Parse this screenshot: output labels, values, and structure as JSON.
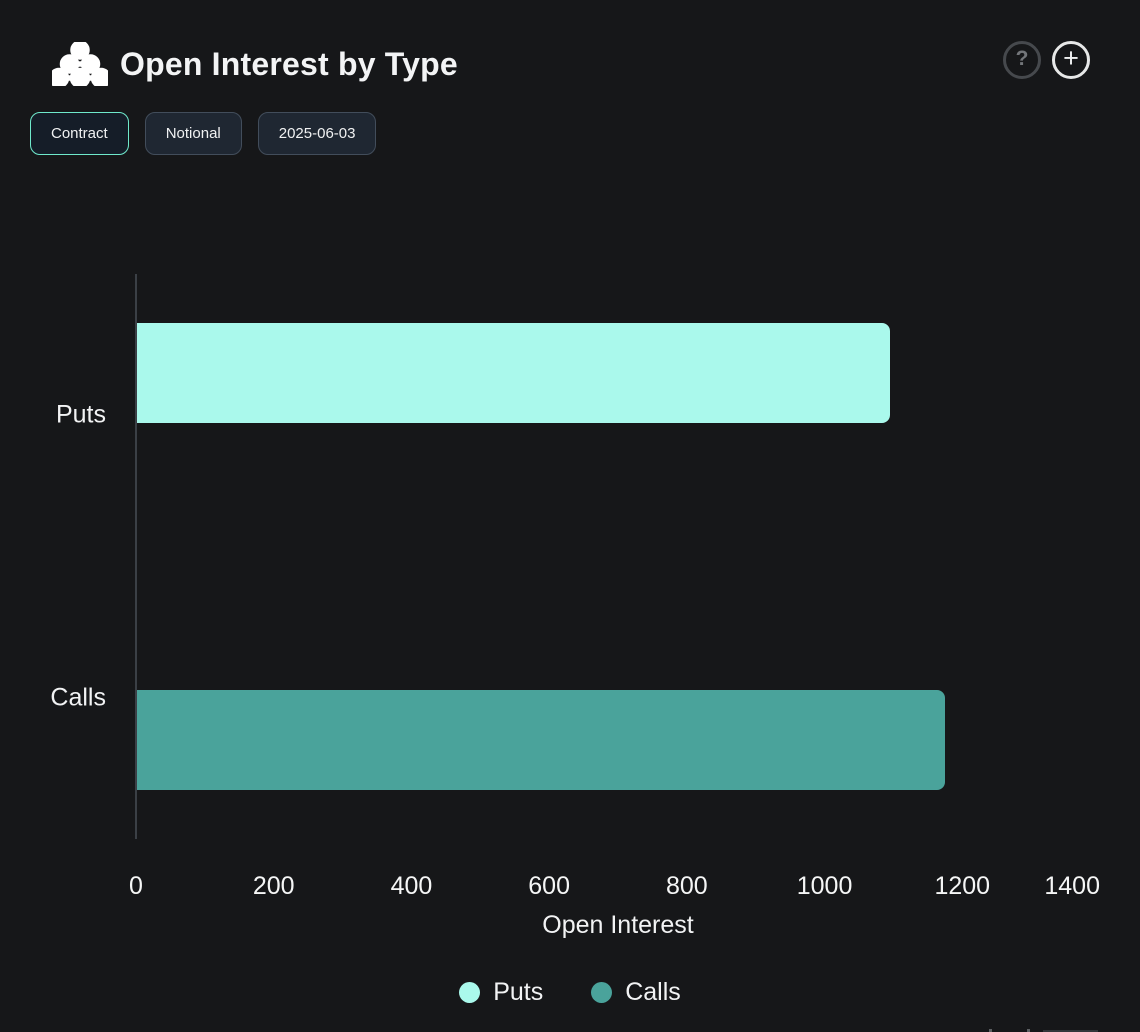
{
  "header": {
    "title": "Open Interest by Type",
    "help_label": "?",
    "add_label": "+"
  },
  "toolbar": {
    "buttons": [
      {
        "label": "Contract",
        "active": true
      },
      {
        "label": "Notional",
        "active": false
      },
      {
        "label": "2025-06-03",
        "active": false
      }
    ]
  },
  "chart_data": {
    "type": "bar",
    "orientation": "horizontal",
    "title": "Open Interest by Type",
    "categories": [
      "Puts",
      "Calls"
    ],
    "series": [
      {
        "name": "Puts",
        "color": "#aaf9ec",
        "values": [
          1094,
          null
        ]
      },
      {
        "name": "Calls",
        "color": "#4aa39b",
        "values": [
          null,
          1174
        ]
      }
    ],
    "xlabel": "Open Interest",
    "xlim": [
      0,
      1400
    ],
    "xticks": [
      0,
      200,
      400,
      600,
      800,
      1000,
      1200,
      1400
    ],
    "grid": false,
    "legend_position": "bottom"
  },
  "colors": {
    "background": "#161719",
    "accent_mint": "#6fe9cc",
    "bar_puts": "#aaf9ec",
    "bar_calls": "#4aa39b",
    "button_border": "#424d5b",
    "button_bg": "#1f2732",
    "active_button_bg": "#151d28",
    "axis_line": "#3b4046",
    "text": "#f3f4f5"
  }
}
